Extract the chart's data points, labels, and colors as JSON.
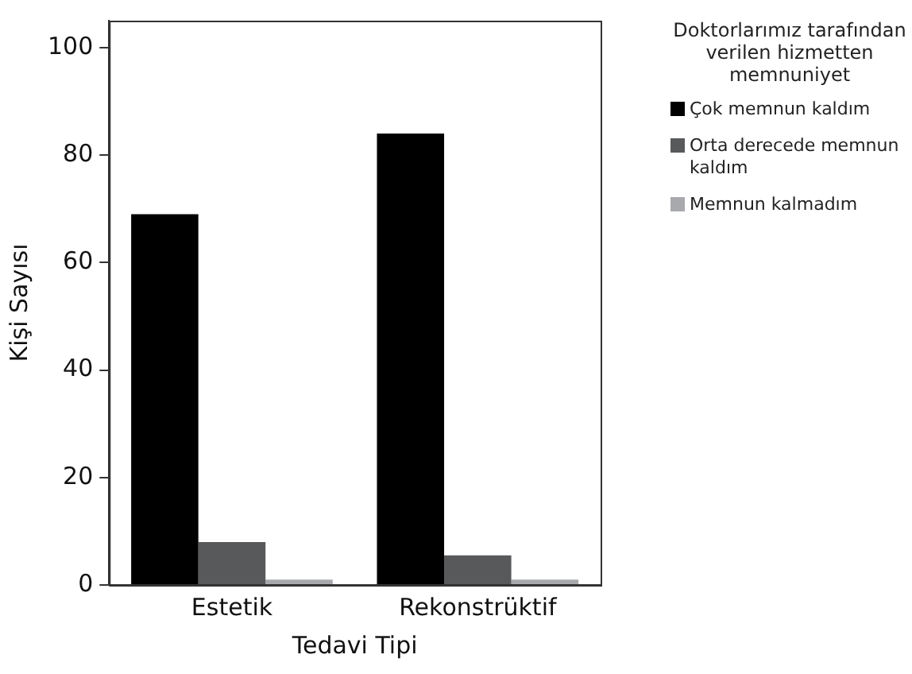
{
  "chart_data": {
    "type": "bar",
    "xlabel": "Tedavi Tipi",
    "ylabel": "Kişi Sayısı",
    "legend_title": "Doktorlarımız tarafından verilen hizmetten memnuniyet",
    "categories": [
      "Estetik",
      "Rekonstrüktif"
    ],
    "series": [
      {
        "name": "Çok memnun kaldım",
        "color": "#000000",
        "values": [
          69,
          84
        ]
      },
      {
        "name": "Orta derecede memnun kaldım",
        "color": "#58595b",
        "values": [
          8,
          5.5
        ]
      },
      {
        "name": "Memnun kalmadım",
        "color": "#a7a9ac",
        "values": [
          1,
          1
        ]
      }
    ],
    "ylim": [
      0,
      105
    ],
    "yticks": [
      0,
      20,
      40,
      60,
      80,
      100
    ],
    "grid": false,
    "legend": "right"
  }
}
